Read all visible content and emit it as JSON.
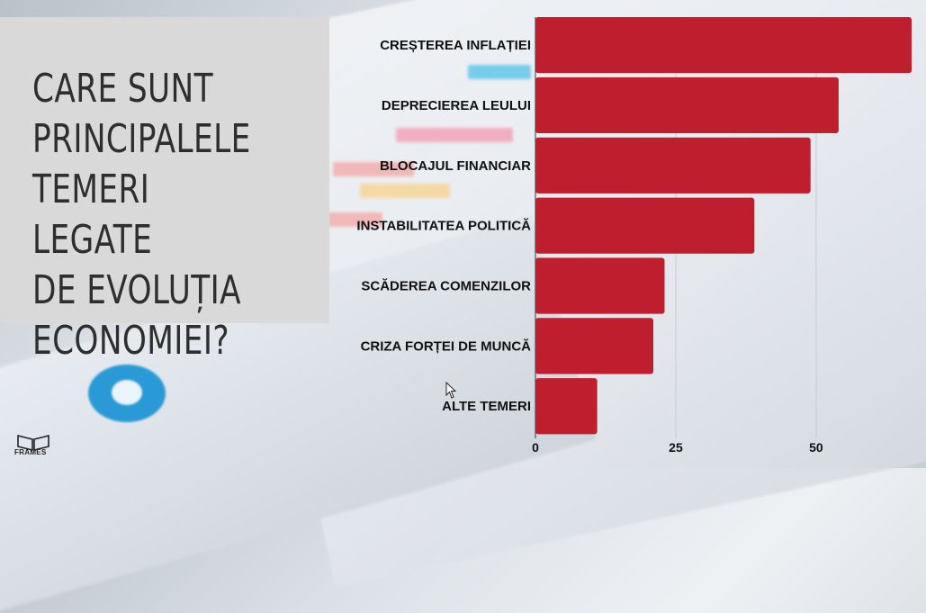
{
  "title": "CARE SUNT\nPRINCIPALELE\nTEMERI LEGATE\nDE EVOLUȚIA\nECONOMIEI?",
  "logo": {
    "text": "FRAMES",
    "icon": "frames-logo-icon"
  },
  "colors": {
    "bar": "#be1e2d",
    "title_box": "#d9d9d9",
    "title_text": "#2e2e2e"
  },
  "chart_data": {
    "type": "bar",
    "orientation": "horizontal",
    "title": "",
    "xlabel": "",
    "ylabel": "",
    "categories": [
      "CREȘTEREA INFLAȚIEI",
      "DEPRECIEREA LEULUI",
      "BLOCAJUL FINANCIAR",
      "INSTABILITATEA POLITICĂ",
      "SCĂDEREA COMENZILOR",
      "CRIZA FORȚEI DE MUNCĂ",
      "ALTE TEMERI"
    ],
    "values": [
      67,
      54,
      49,
      39,
      23,
      21,
      11
    ],
    "xlim": [
      0,
      67
    ],
    "xticks": [
      0,
      25,
      50
    ],
    "xtick_labels": [
      "0",
      "25",
      "50"
    ],
    "grid": true,
    "legend": "none"
  }
}
